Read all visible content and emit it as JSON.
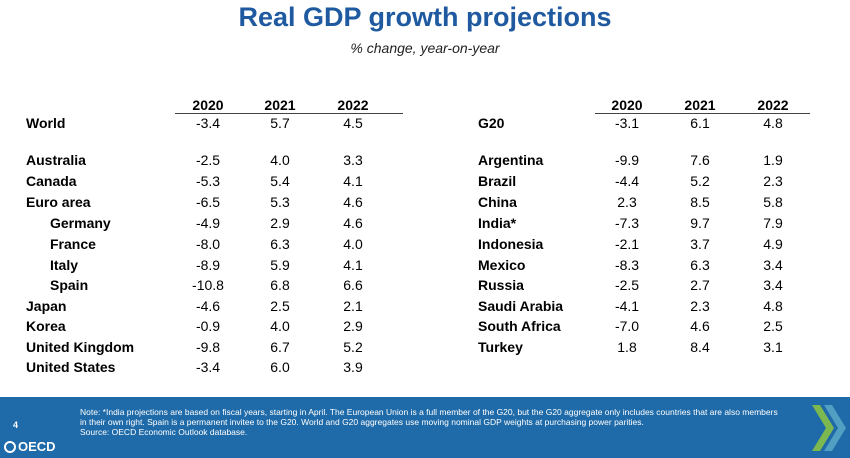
{
  "title": "Real GDP growth projections",
  "subtitle": "% change, year-on-year",
  "years": [
    "2020",
    "2021",
    "2022"
  ],
  "left_table": {
    "rows": [
      {
        "label": "World",
        "values": [
          "-3.4",
          "5.7",
          "4.5"
        ],
        "indent": false
      },
      {
        "label": "Australia",
        "values": [
          "-2.5",
          "4.0",
          "3.3"
        ],
        "indent": false
      },
      {
        "label": "Canada",
        "values": [
          "-5.3",
          "5.4",
          "4.1"
        ],
        "indent": false
      },
      {
        "label": "Euro area",
        "values": [
          "-6.5",
          "5.3",
          "4.6"
        ],
        "indent": false
      },
      {
        "label": "Germany",
        "values": [
          "-4.9",
          "2.9",
          "4.6"
        ],
        "indent": true
      },
      {
        "label": "France",
        "values": [
          "-8.0",
          "6.3",
          "4.0"
        ],
        "indent": true
      },
      {
        "label": "Italy",
        "values": [
          "-8.9",
          "5.9",
          "4.1"
        ],
        "indent": true
      },
      {
        "label": "Spain",
        "values": [
          "-10.8",
          "6.8",
          "6.6"
        ],
        "indent": true
      },
      {
        "label": "Japan",
        "values": [
          "-4.6",
          "2.5",
          "2.1"
        ],
        "indent": false
      },
      {
        "label": "Korea",
        "values": [
          "-0.9",
          "4.0",
          "2.9"
        ],
        "indent": false
      },
      {
        "label": "United Kingdom",
        "values": [
          "-9.8",
          "6.7",
          "5.2"
        ],
        "indent": false
      },
      {
        "label": "United States",
        "values": [
          "-3.4",
          "6.0",
          "3.9"
        ],
        "indent": false
      }
    ]
  },
  "right_table": {
    "rows": [
      {
        "label": "G20",
        "values": [
          "-3.1",
          "6.1",
          "4.8"
        ]
      },
      {
        "label": "Argentina",
        "values": [
          "-9.9",
          "7.6",
          "1.9"
        ]
      },
      {
        "label": "Brazil",
        "values": [
          "-4.4",
          "5.2",
          "2.3"
        ]
      },
      {
        "label": "China",
        "values": [
          "2.3",
          "8.5",
          "5.8"
        ]
      },
      {
        "label": "India*",
        "values": [
          "-7.3",
          "9.7",
          "7.9"
        ]
      },
      {
        "label": "Indonesia",
        "values": [
          "-2.1",
          "3.7",
          "4.9"
        ]
      },
      {
        "label": "Mexico",
        "values": [
          "-8.3",
          "6.3",
          "3.4"
        ]
      },
      {
        "label": "Russia",
        "values": [
          "-2.5",
          "2.7",
          "3.4"
        ]
      },
      {
        "label": "Saudi Arabia",
        "values": [
          "-4.1",
          "2.3",
          "4.8"
        ]
      },
      {
        "label": "South Africa",
        "values": [
          "-7.0",
          "4.6",
          "2.5"
        ]
      },
      {
        "label": "Turkey",
        "values": [
          "1.8",
          "8.4",
          "3.1"
        ]
      }
    ]
  },
  "footer": {
    "page_number": "4",
    "note": "Note: *India projections are based on fiscal years, starting in April. The European Union is a full member of the G20, but the G20 aggregate only includes countries that are also members in their own right. Spain is a permanent invitee to the G20. World and G20 aggregates use moving nominal GDP weights at purchasing power parities.",
    "source": "Source: OECD Economic Outlook database.",
    "logo_text": "OECD",
    "colors": {
      "band": "#1f6aa8",
      "title": "#1f5aa0",
      "chevron": "#8cc63f"
    }
  }
}
